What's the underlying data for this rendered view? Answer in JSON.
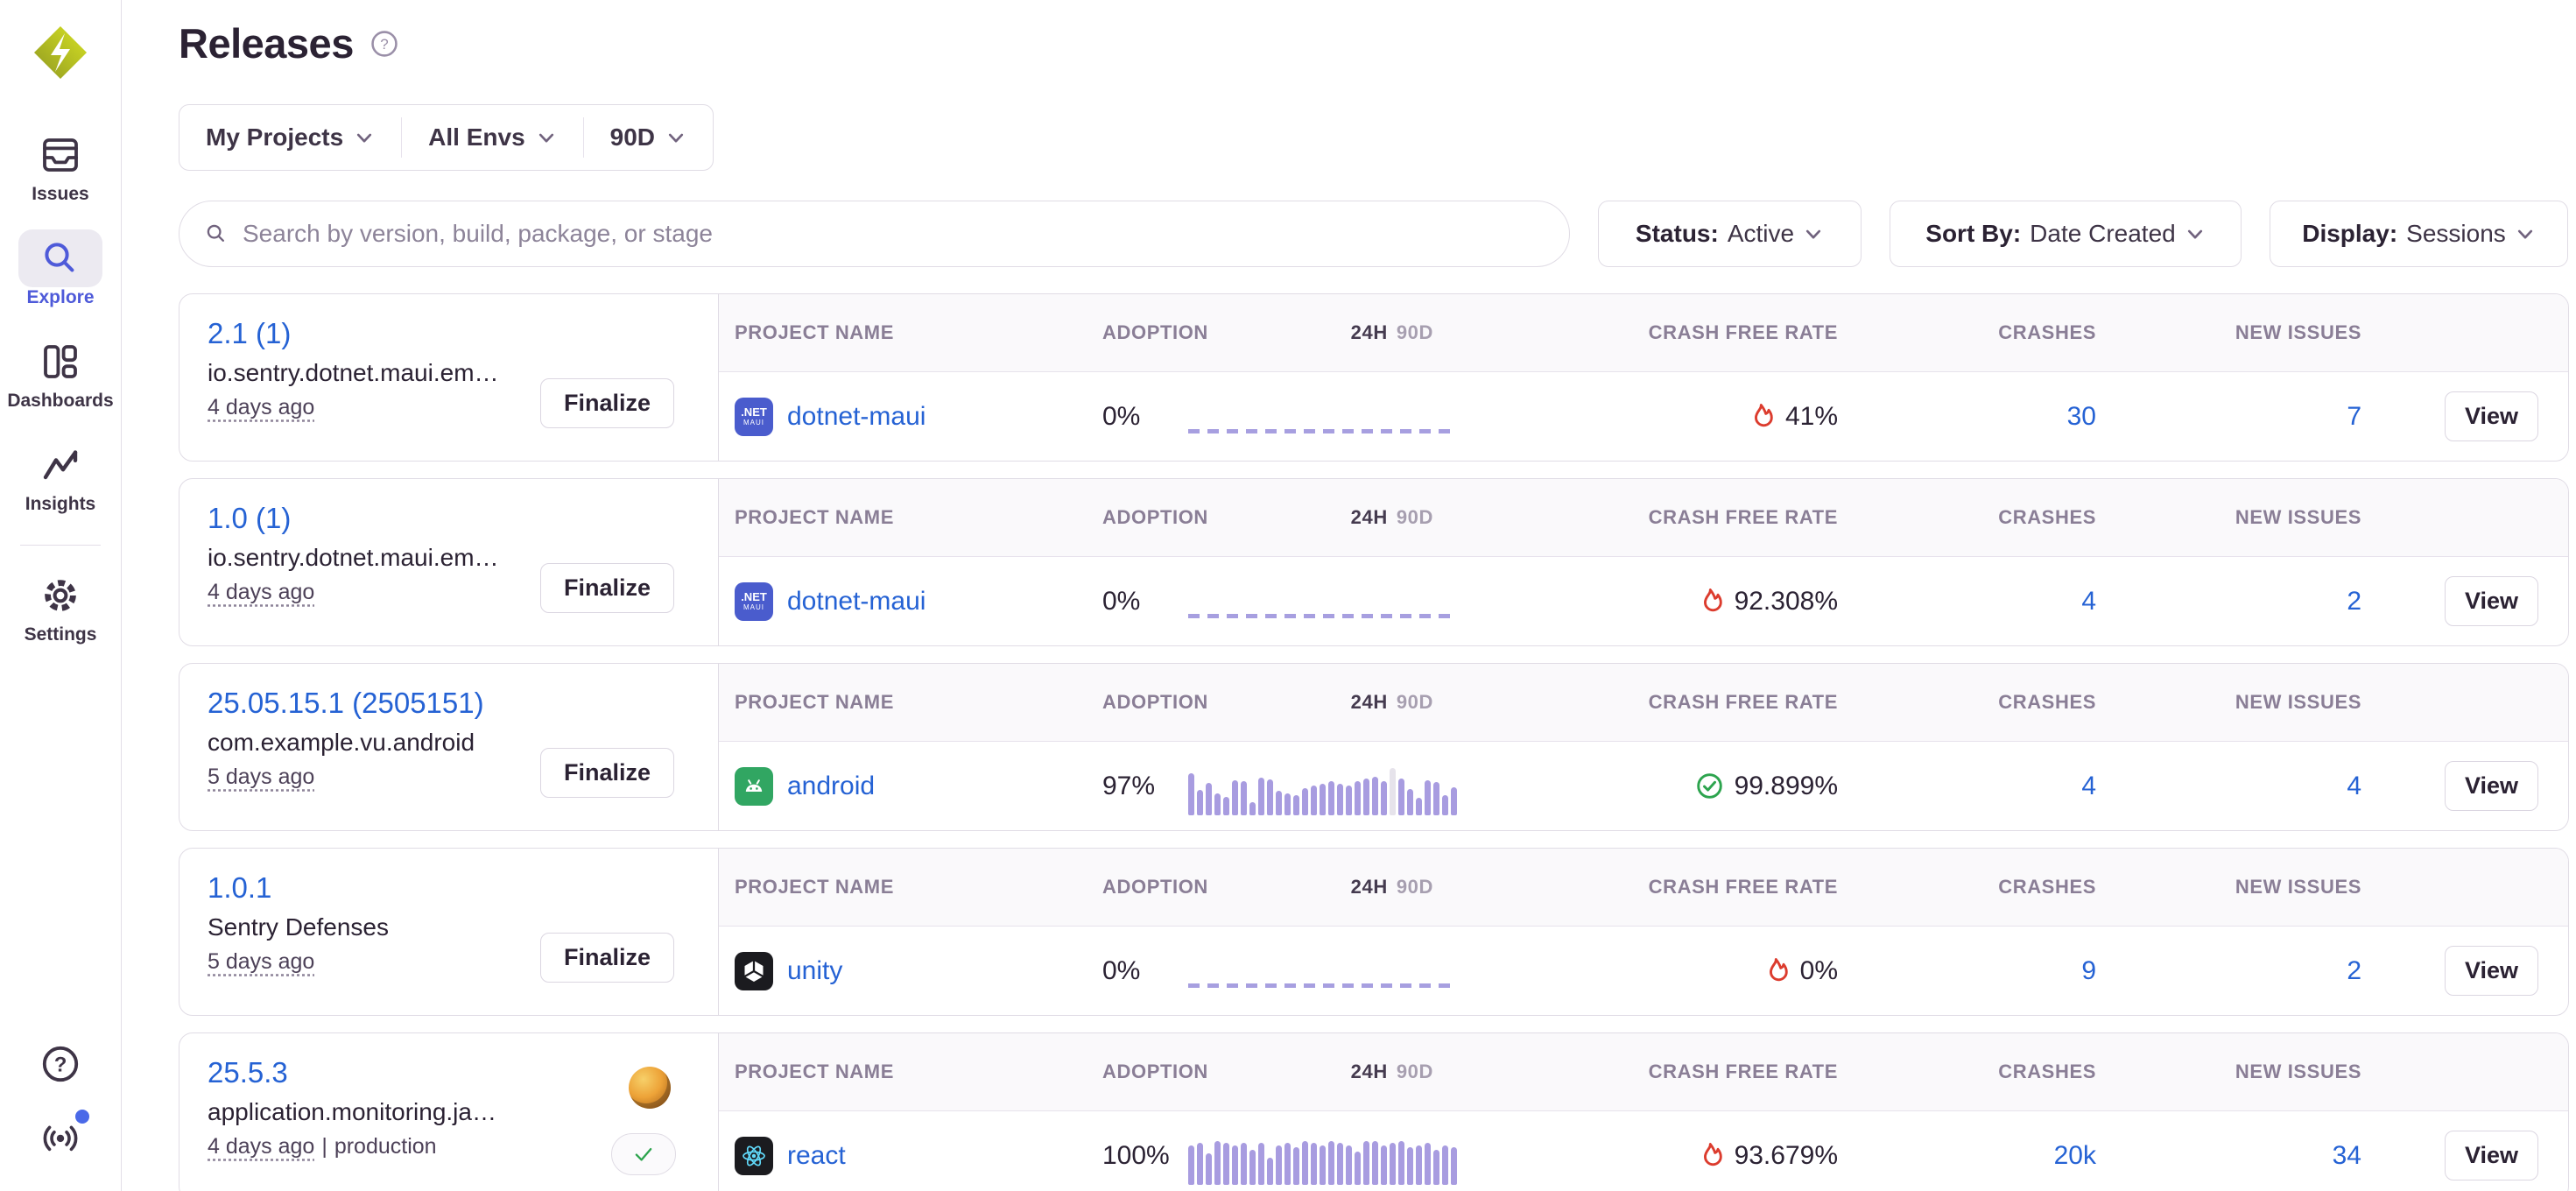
{
  "app": {
    "name": "Sentry",
    "logo_icon": "sentry-logo"
  },
  "colors": {
    "link_blue": "#2562d4",
    "active_nav_blue": "#4e5ad9",
    "flame_red": "#dc3c2e",
    "success_green": "#2da44e",
    "sparkline_purple": "#a89ce0",
    "logo_yellow_green": "#d8e323",
    "border": "#e0dce5",
    "header_bg": "#faf9fb",
    "text_dark": "#2b2233",
    "text_muted": "#8a7e96",
    "notification_dot_blue": "#4a69e8"
  },
  "sidebar": {
    "items": [
      {
        "label": "Issues",
        "icon": "issues-icon",
        "active": false
      },
      {
        "label": "Explore",
        "icon": "search-icon",
        "active": true
      },
      {
        "label": "Dashboards",
        "icon": "dashboards-icon",
        "active": false
      },
      {
        "label": "Insights",
        "icon": "insights-icon",
        "active": false
      },
      {
        "label": "Settings",
        "icon": "settings-icon",
        "active": false
      }
    ],
    "footer_icons": [
      "help-icon",
      "broadcast-icon"
    ],
    "has_notification_dot": true
  },
  "header": {
    "title": "Releases",
    "help_icon": "help-circle-icon"
  },
  "filters": {
    "project": "My Projects",
    "environment": "All Envs",
    "date_range": "90D"
  },
  "search": {
    "placeholder": "Search by version, build, package, or stage",
    "value": "",
    "icon": "search-icon"
  },
  "controls": {
    "status_label": "Status:",
    "status_value": "Active",
    "sort_label": "Sort By:",
    "sort_value": "Date Created",
    "display_label": "Display:",
    "display_value": "Sessions"
  },
  "table_headers": {
    "project": "PROJECT NAME",
    "adoption": "ADOPTION",
    "period_24h": "24H",
    "period_90d": "90D",
    "crash_free": "CRASH FREE RATE",
    "crashes": "CRASHES",
    "new_issues": "NEW ISSUES"
  },
  "buttons": {
    "finalize": "Finalize",
    "view": "View"
  },
  "releases": [
    {
      "version": "2.1 (1)",
      "package": "io.sentry.dotnet.maui.em…",
      "created": "4 days ago",
      "project": {
        "name": "dotnet-maui",
        "icon": "dotnet-maui-icon",
        "icon_text": ".NET",
        "icon_subtext": "MAUI"
      },
      "adoption": "0%",
      "chart": {
        "type": "empty-dashed",
        "values": []
      },
      "crash_free_rate": "41%",
      "crash_free_icon": "flame-icon",
      "crashes": "30",
      "new_issues": "7"
    },
    {
      "version": "1.0 (1)",
      "package": "io.sentry.dotnet.maui.em…",
      "created": "4 days ago",
      "project": {
        "name": "dotnet-maui",
        "icon": "dotnet-maui-icon",
        "icon_text": ".NET",
        "icon_subtext": "MAUI"
      },
      "adoption": "0%",
      "chart": {
        "type": "empty-dashed",
        "values": []
      },
      "crash_free_rate": "92.308%",
      "crash_free_icon": "flame-icon",
      "crashes": "4",
      "new_issues": "2"
    },
    {
      "version": "25.05.15.1 (2505151)",
      "package": "com.example.vu.android",
      "created": "5 days ago",
      "project": {
        "name": "android",
        "icon": "android-icon"
      },
      "adoption": "97%",
      "chart": {
        "type": "bar",
        "highlight_index": 23,
        "values": [
          0.95,
          0.58,
          0.74,
          0.5,
          0.42,
          0.8,
          0.78,
          0.3,
          0.86,
          0.82,
          0.55,
          0.5,
          0.46,
          0.62,
          0.68,
          0.72,
          0.78,
          0.72,
          0.68,
          0.78,
          0.84,
          0.88,
          0.78,
          1.0,
          0.84,
          0.6,
          0.4,
          0.8,
          0.76,
          0.45,
          0.64
        ]
      },
      "crash_free_rate": "99.899%",
      "crash_free_icon": "check-circle-icon",
      "crashes": "4",
      "new_issues": "4"
    },
    {
      "version": "1.0.1",
      "package": "Sentry Defenses",
      "created": "5 days ago",
      "project": {
        "name": "unity",
        "icon": "unity-icon"
      },
      "adoption": "0%",
      "chart": {
        "type": "empty-dashed",
        "values": []
      },
      "crash_free_rate": "0%",
      "crash_free_icon": "flame-icon",
      "crashes": "9",
      "new_issues": "2"
    },
    {
      "version": "25.5.3",
      "package": "application.monitoring.ja…",
      "created": "4 days ago",
      "env_separator": "|",
      "environment": "production",
      "has_avatar": true,
      "finalized_check": true,
      "project": {
        "name": "react",
        "icon": "react-icon"
      },
      "adoption": "100%",
      "chart": {
        "type": "bar",
        "values": [
          0.9,
          0.95,
          0.72,
          1.0,
          0.95,
          0.9,
          0.95,
          0.8,
          0.95,
          0.62,
          0.9,
          0.95,
          0.85,
          1.0,
          0.95,
          0.9,
          1.0,
          0.95,
          0.9,
          0.75,
          1.0,
          1.0,
          0.9,
          0.95,
          1.0,
          0.85,
          0.9,
          0.95,
          0.8,
          0.9,
          0.85
        ]
      },
      "crash_free_rate": "93.679%",
      "crash_free_icon": "flame-icon",
      "crashes": "20k",
      "new_issues": "34"
    }
  ]
}
